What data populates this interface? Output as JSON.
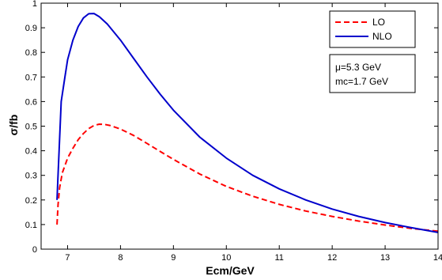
{
  "chart_data": {
    "type": "line",
    "xlabel": "Ecm/GeV",
    "ylabel": "σ/fb",
    "xlim": [
      6.5,
      14
    ],
    "ylim": [
      0,
      1
    ],
    "xticks": [
      "7",
      "8",
      "9",
      "10",
      "11",
      "12",
      "13",
      "14"
    ],
    "yticks": [
      "0",
      "0.1",
      "0.2",
      "0.3",
      "0.4",
      "0.5",
      "0.6",
      "0.7",
      "0.8",
      "0.9",
      "1"
    ],
    "legend_position": "top-right",
    "annotation_lines": [
      "μ=5.3 GeV",
      "mc=1.7 GeV"
    ],
    "grid": false,
    "series": [
      {
        "name": "LO",
        "color": "#ff0000",
        "style": "dashed",
        "points": [
          [
            6.8,
            0.1
          ],
          [
            6.82,
            0.18
          ],
          [
            6.85,
            0.25
          ],
          [
            6.9,
            0.31
          ],
          [
            7.0,
            0.37
          ],
          [
            7.1,
            0.41
          ],
          [
            7.2,
            0.445
          ],
          [
            7.3,
            0.47
          ],
          [
            7.4,
            0.49
          ],
          [
            7.5,
            0.503
          ],
          [
            7.6,
            0.508
          ],
          [
            7.7,
            0.507
          ],
          [
            7.8,
            0.503
          ],
          [
            8.0,
            0.488
          ],
          [
            8.25,
            0.462
          ],
          [
            8.5,
            0.43
          ],
          [
            8.75,
            0.397
          ],
          [
            9.0,
            0.365
          ],
          [
            9.5,
            0.305
          ],
          [
            10.0,
            0.255
          ],
          [
            10.5,
            0.215
          ],
          [
            11.0,
            0.182
          ],
          [
            11.5,
            0.155
          ],
          [
            12.0,
            0.133
          ],
          [
            12.5,
            0.114
          ],
          [
            13.0,
            0.098
          ],
          [
            13.5,
            0.084
          ],
          [
            14.0,
            0.073
          ]
        ]
      },
      {
        "name": "NLO",
        "color": "#0000cc",
        "style": "solid",
        "points": [
          [
            6.8,
            0.2
          ],
          [
            6.82,
            0.3
          ],
          [
            6.85,
            0.45
          ],
          [
            6.88,
            0.6
          ],
          [
            6.95,
            0.7
          ],
          [
            7.0,
            0.77
          ],
          [
            7.1,
            0.85
          ],
          [
            7.2,
            0.905
          ],
          [
            7.3,
            0.94
          ],
          [
            7.4,
            0.957
          ],
          [
            7.5,
            0.958
          ],
          [
            7.6,
            0.945
          ],
          [
            7.75,
            0.915
          ],
          [
            8.0,
            0.85
          ],
          [
            8.25,
            0.775
          ],
          [
            8.5,
            0.7
          ],
          [
            8.75,
            0.63
          ],
          [
            9.0,
            0.565
          ],
          [
            9.5,
            0.455
          ],
          [
            10.0,
            0.37
          ],
          [
            10.5,
            0.3
          ],
          [
            11.0,
            0.245
          ],
          [
            11.5,
            0.2
          ],
          [
            12.0,
            0.163
          ],
          [
            12.5,
            0.133
          ],
          [
            13.0,
            0.108
          ],
          [
            13.5,
            0.087
          ],
          [
            14.0,
            0.068
          ]
        ]
      }
    ]
  }
}
